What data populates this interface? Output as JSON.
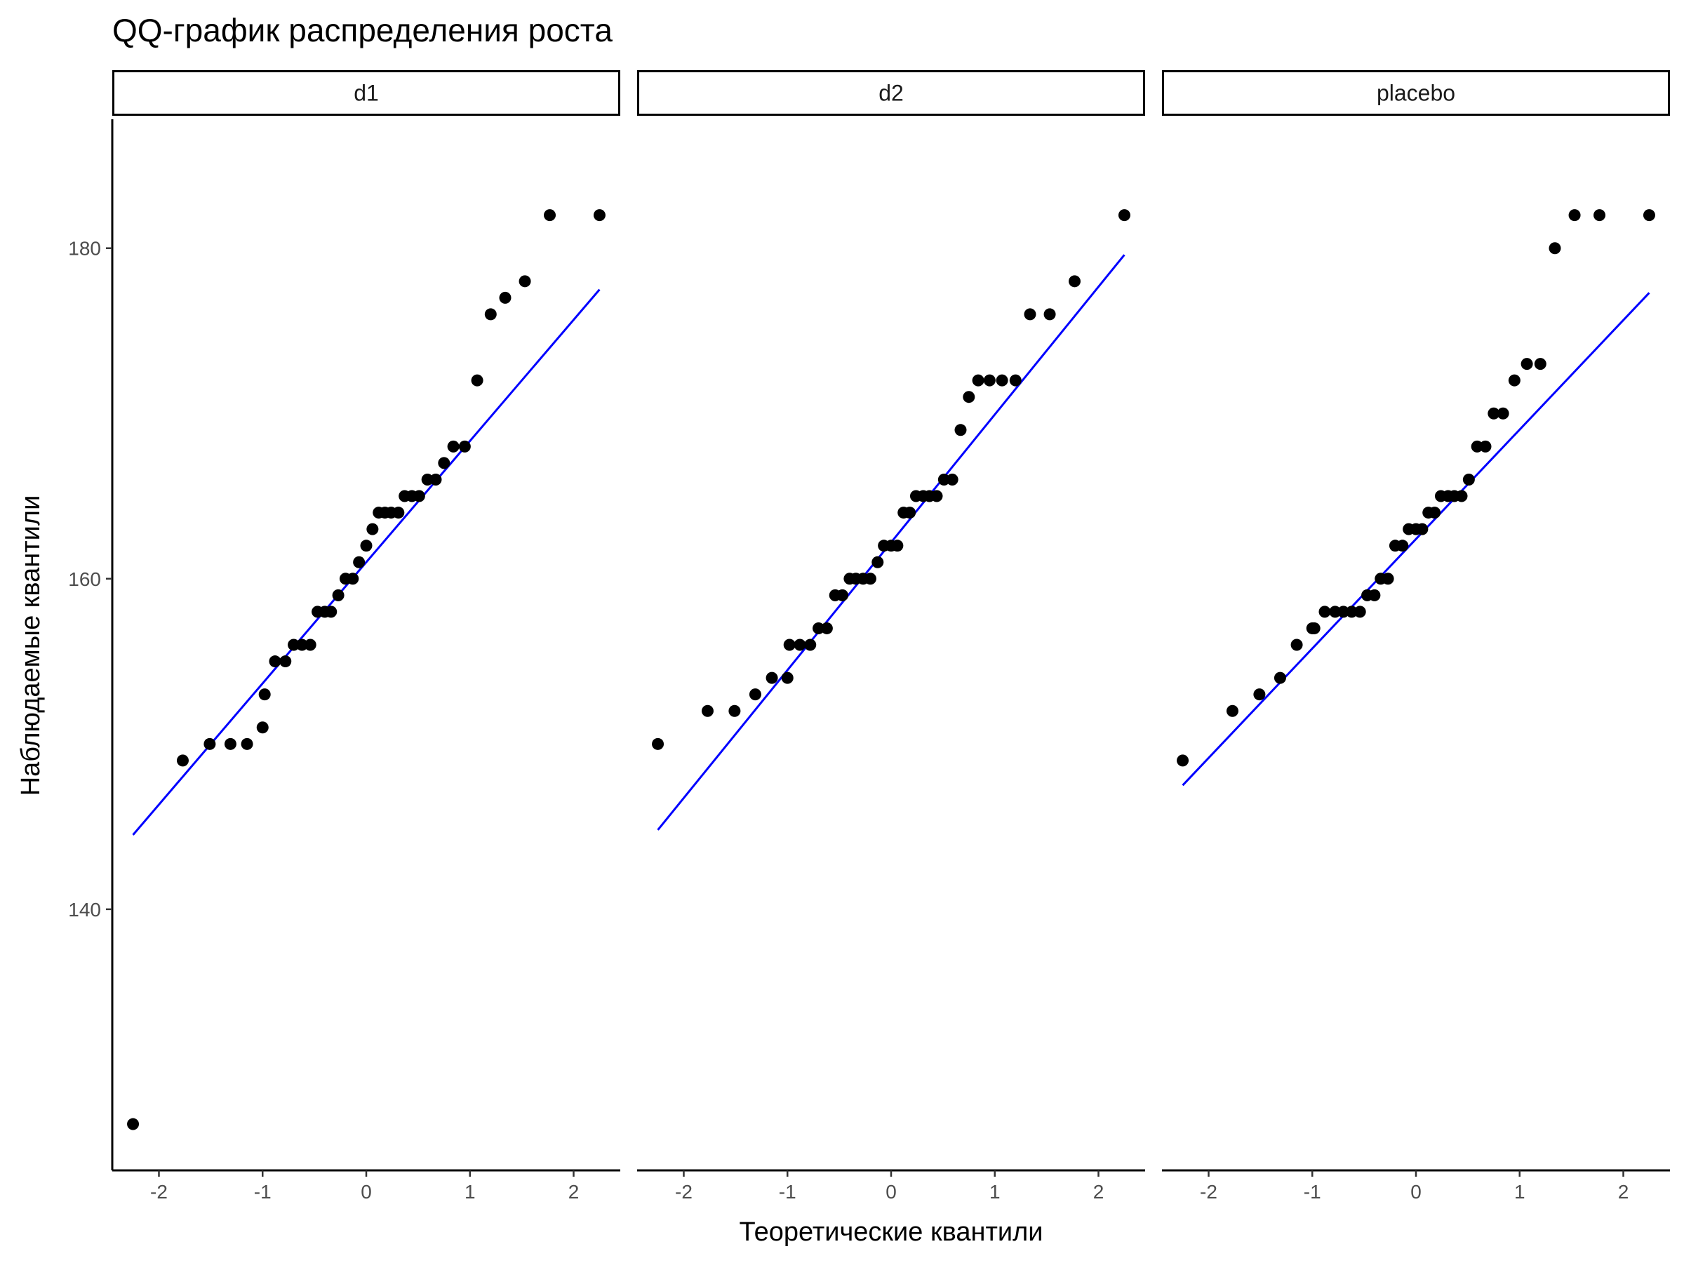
{
  "chart_data": {
    "type": "scatter",
    "title": "QQ-график распределения роста",
    "xlabel": "Теоретические квантили",
    "ylabel": "Наблюдаемые квантили",
    "xlim": [
      -2.45,
      2.45
    ],
    "ylim": [
      124.2,
      187.8
    ],
    "x_ticks": [
      -2,
      -1,
      0,
      1,
      2
    ],
    "x_tick_labels": [
      "-2",
      "-1",
      "0",
      "1",
      "2"
    ],
    "y_ticks": [
      140,
      160,
      180
    ],
    "y_tick_labels": [
      "140",
      "160",
      "180"
    ],
    "grid": false,
    "legend": "none",
    "colors": {
      "points": "#000000",
      "reference_line": "#0000ff"
    },
    "panels": [
      {
        "name": "d1",
        "points": [
          [
            -2.25,
            127
          ],
          [
            -1.77,
            149
          ],
          [
            -1.51,
            150
          ],
          [
            -1.31,
            150
          ],
          [
            -1.15,
            150
          ],
          [
            -1.0,
            151
          ],
          [
            -0.98,
            153
          ],
          [
            -0.88,
            155
          ],
          [
            -0.78,
            155
          ],
          [
            -0.7,
            156
          ],
          [
            -0.62,
            156
          ],
          [
            -0.54,
            156
          ],
          [
            -0.47,
            158
          ],
          [
            -0.4,
            158
          ],
          [
            -0.34,
            158
          ],
          [
            -0.27,
            159
          ],
          [
            -0.2,
            160
          ],
          [
            -0.13,
            160
          ],
          [
            -0.07,
            161
          ],
          [
            0.0,
            162
          ],
          [
            0.06,
            163
          ],
          [
            0.12,
            164
          ],
          [
            0.18,
            164
          ],
          [
            0.24,
            164
          ],
          [
            0.31,
            164
          ],
          [
            0.37,
            165
          ],
          [
            0.44,
            165
          ],
          [
            0.51,
            165
          ],
          [
            0.59,
            166
          ],
          [
            0.67,
            166
          ],
          [
            0.75,
            167
          ],
          [
            0.84,
            168
          ],
          [
            0.95,
            168
          ],
          [
            1.07,
            172
          ],
          [
            1.2,
            176
          ],
          [
            1.34,
            177
          ],
          [
            1.53,
            178
          ],
          [
            1.77,
            182
          ],
          [
            2.25,
            182
          ]
        ],
        "line": [
          [
            -2.25,
            144.5
          ],
          [
            2.25,
            177.5
          ]
        ]
      },
      {
        "name": "d2",
        "points": [
          [
            -2.25,
            150
          ],
          [
            -1.77,
            152
          ],
          [
            -1.51,
            152
          ],
          [
            -1.31,
            153
          ],
          [
            -1.15,
            154
          ],
          [
            -1.0,
            154
          ],
          [
            -0.98,
            156
          ],
          [
            -0.88,
            156
          ],
          [
            -0.78,
            156
          ],
          [
            -0.7,
            157
          ],
          [
            -0.62,
            157
          ],
          [
            -0.54,
            159
          ],
          [
            -0.47,
            159
          ],
          [
            -0.4,
            160
          ],
          [
            -0.34,
            160
          ],
          [
            -0.27,
            160
          ],
          [
            -0.2,
            160
          ],
          [
            -0.13,
            161
          ],
          [
            -0.07,
            162
          ],
          [
            0.0,
            162
          ],
          [
            0.06,
            162
          ],
          [
            0.12,
            164
          ],
          [
            0.18,
            164
          ],
          [
            0.24,
            165
          ],
          [
            0.31,
            165
          ],
          [
            0.37,
            165
          ],
          [
            0.44,
            165
          ],
          [
            0.51,
            166
          ],
          [
            0.59,
            166
          ],
          [
            0.67,
            169
          ],
          [
            0.75,
            171
          ],
          [
            0.84,
            172
          ],
          [
            0.95,
            172
          ],
          [
            1.07,
            172
          ],
          [
            1.2,
            172
          ],
          [
            1.34,
            176
          ],
          [
            1.53,
            176
          ],
          [
            1.77,
            178
          ],
          [
            2.25,
            182
          ]
        ],
        "line": [
          [
            -2.25,
            144.8
          ],
          [
            2.25,
            179.6
          ]
        ]
      },
      {
        "name": "placebo",
        "points": [
          [
            -2.25,
            149
          ],
          [
            -1.77,
            152
          ],
          [
            -1.51,
            153
          ],
          [
            -1.31,
            154
          ],
          [
            -1.15,
            156
          ],
          [
            -1.0,
            157
          ],
          [
            -0.98,
            157
          ],
          [
            -0.88,
            158
          ],
          [
            -0.78,
            158
          ],
          [
            -0.7,
            158
          ],
          [
            -0.62,
            158
          ],
          [
            -0.54,
            158
          ],
          [
            -0.47,
            159
          ],
          [
            -0.4,
            159
          ],
          [
            -0.34,
            160
          ],
          [
            -0.27,
            160
          ],
          [
            -0.2,
            162
          ],
          [
            -0.13,
            162
          ],
          [
            -0.07,
            163
          ],
          [
            0.0,
            163
          ],
          [
            0.06,
            163
          ],
          [
            0.12,
            164
          ],
          [
            0.18,
            164
          ],
          [
            0.24,
            165
          ],
          [
            0.31,
            165
          ],
          [
            0.37,
            165
          ],
          [
            0.44,
            165
          ],
          [
            0.51,
            166
          ],
          [
            0.59,
            168
          ],
          [
            0.67,
            168
          ],
          [
            0.75,
            170
          ],
          [
            0.84,
            170
          ],
          [
            0.95,
            172
          ],
          [
            1.07,
            173
          ],
          [
            1.2,
            173
          ],
          [
            1.34,
            180
          ],
          [
            1.53,
            182
          ],
          [
            1.77,
            182
          ],
          [
            2.25,
            182
          ]
        ],
        "line": [
          [
            -2.25,
            147.5
          ],
          [
            2.25,
            177.3
          ]
        ]
      }
    ]
  }
}
